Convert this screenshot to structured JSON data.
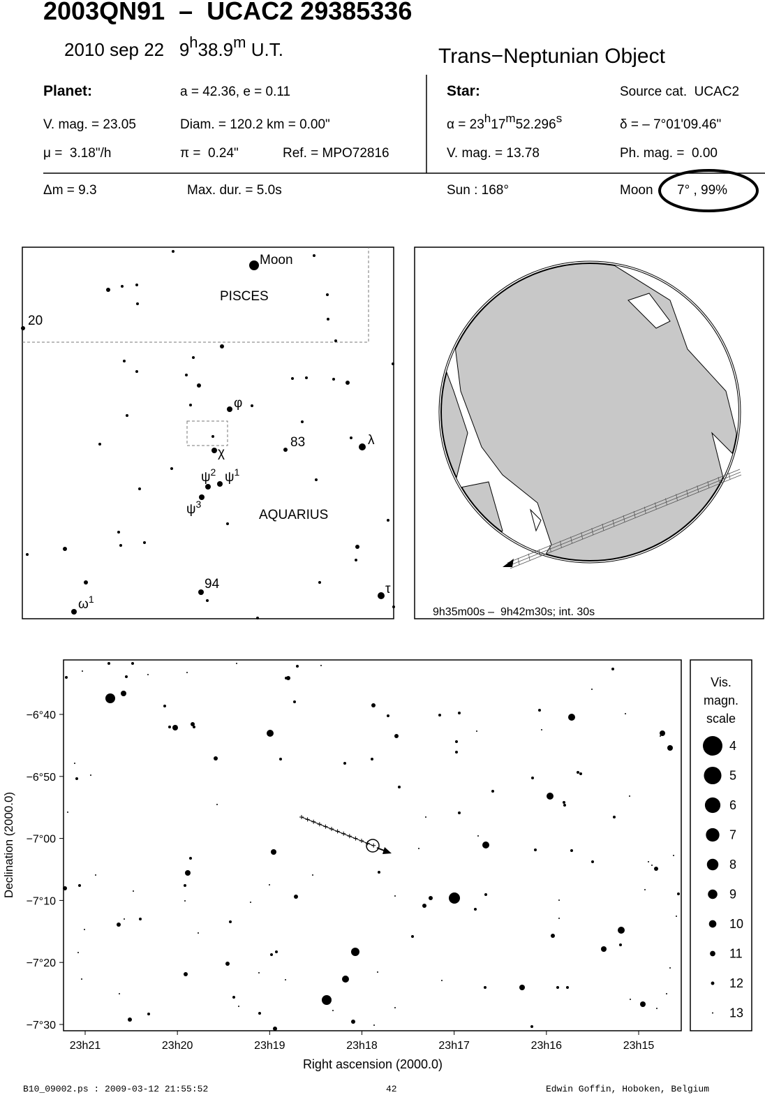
{
  "header": {
    "title": "2003QN91  –  UCAC2 29385336",
    "date": "2010 sep 22",
    "time_hours": "9",
    "time_h": "h",
    "time_minutes": "38.9",
    "time_m": "m",
    "time_zone": "U.T.",
    "object_type": "Trans−Neptunian Object"
  },
  "details": {
    "planet_label": "Planet:",
    "orbit": "a = 42.36, e = 0.11",
    "planet_vmag": "V. mag. = 23.05",
    "diameter": "Diam. = 120.2 km = 0.00\"",
    "motion": "μ =  3.18\"/h",
    "parallax": "π =  0.24\"",
    "reference": "Ref. = MPO72816",
    "star_label": "Star:",
    "source": "Source cat.  UCAC2",
    "ra_hours": "α = 23",
    "ra_h": "h",
    "ra_minutes": "17",
    "ra_m": "m",
    "ra_seconds": "52.296",
    "ra_s": "s",
    "dec": "δ = – 7°01'09.46\"",
    "star_vmag": "V. mag. = 13.78",
    "phmag": "Ph. mag. =  0.00",
    "delta_m": "Δm = 9.3",
    "max_dur": "Max. dur. = 5.0s",
    "sun": "Sun : 168°",
    "moon_label": "Moon",
    "moon": "7° , 99%"
  },
  "finder": {
    "labels": [
      {
        "text": "Moon"
      },
      {
        "text": "PISCES"
      },
      {
        "text": "20"
      },
      {
        "text": "φ"
      },
      {
        "text": "χ"
      },
      {
        "text": "83"
      },
      {
        "text": "λ"
      },
      {
        "text": "ψ",
        "sup": "2"
      },
      {
        "text": "ψ",
        "sup": "1"
      },
      {
        "text": "ψ",
        "sup": "3"
      },
      {
        "text": "AQUARIUS"
      },
      {
        "text": "94"
      },
      {
        "text": "τ"
      },
      {
        "text": "ω",
        "sup": "1"
      }
    ]
  },
  "globe": {
    "caption": "9h35m00s –  9h42m30s; int. 30s"
  },
  "star_chart": {
    "ylabel": "Declination (2000.0)",
    "xlabel": "Right ascension (2000.0)",
    "yticks": [
      {
        "value": -400,
        "label": "−6°40"
      },
      {
        "value": -410,
        "label": "−6°50"
      },
      {
        "value": -420,
        "label": "−7°00"
      },
      {
        "value": -430,
        "label": "−7°10"
      },
      {
        "value": -440,
        "label": "−7°20"
      },
      {
        "value": -450,
        "label": "−7°30"
      }
    ],
    "xticks": [
      {
        "value": 1401,
        "label": "23h21"
      },
      {
        "value": 1400,
        "label": "23h20"
      },
      {
        "value": 1399,
        "label": "23h19"
      },
      {
        "value": 1398,
        "label": "23h18"
      },
      {
        "value": 1397,
        "label": "23h17"
      },
      {
        "value": 1396,
        "label": "23h16"
      },
      {
        "value": 1395,
        "label": "23h15"
      }
    ]
  },
  "legend": {
    "title": [
      "Vis.",
      "magn.",
      "scale"
    ],
    "magnitudes": [
      4,
      5,
      6,
      7,
      8,
      9,
      10,
      11,
      12,
      13
    ]
  },
  "footer": {
    "file": "B10_09002.ps : 2009-03-12 21:55:52",
    "page": "42",
    "author": "Edwin Goffin, Hoboken, Belgium"
  }
}
